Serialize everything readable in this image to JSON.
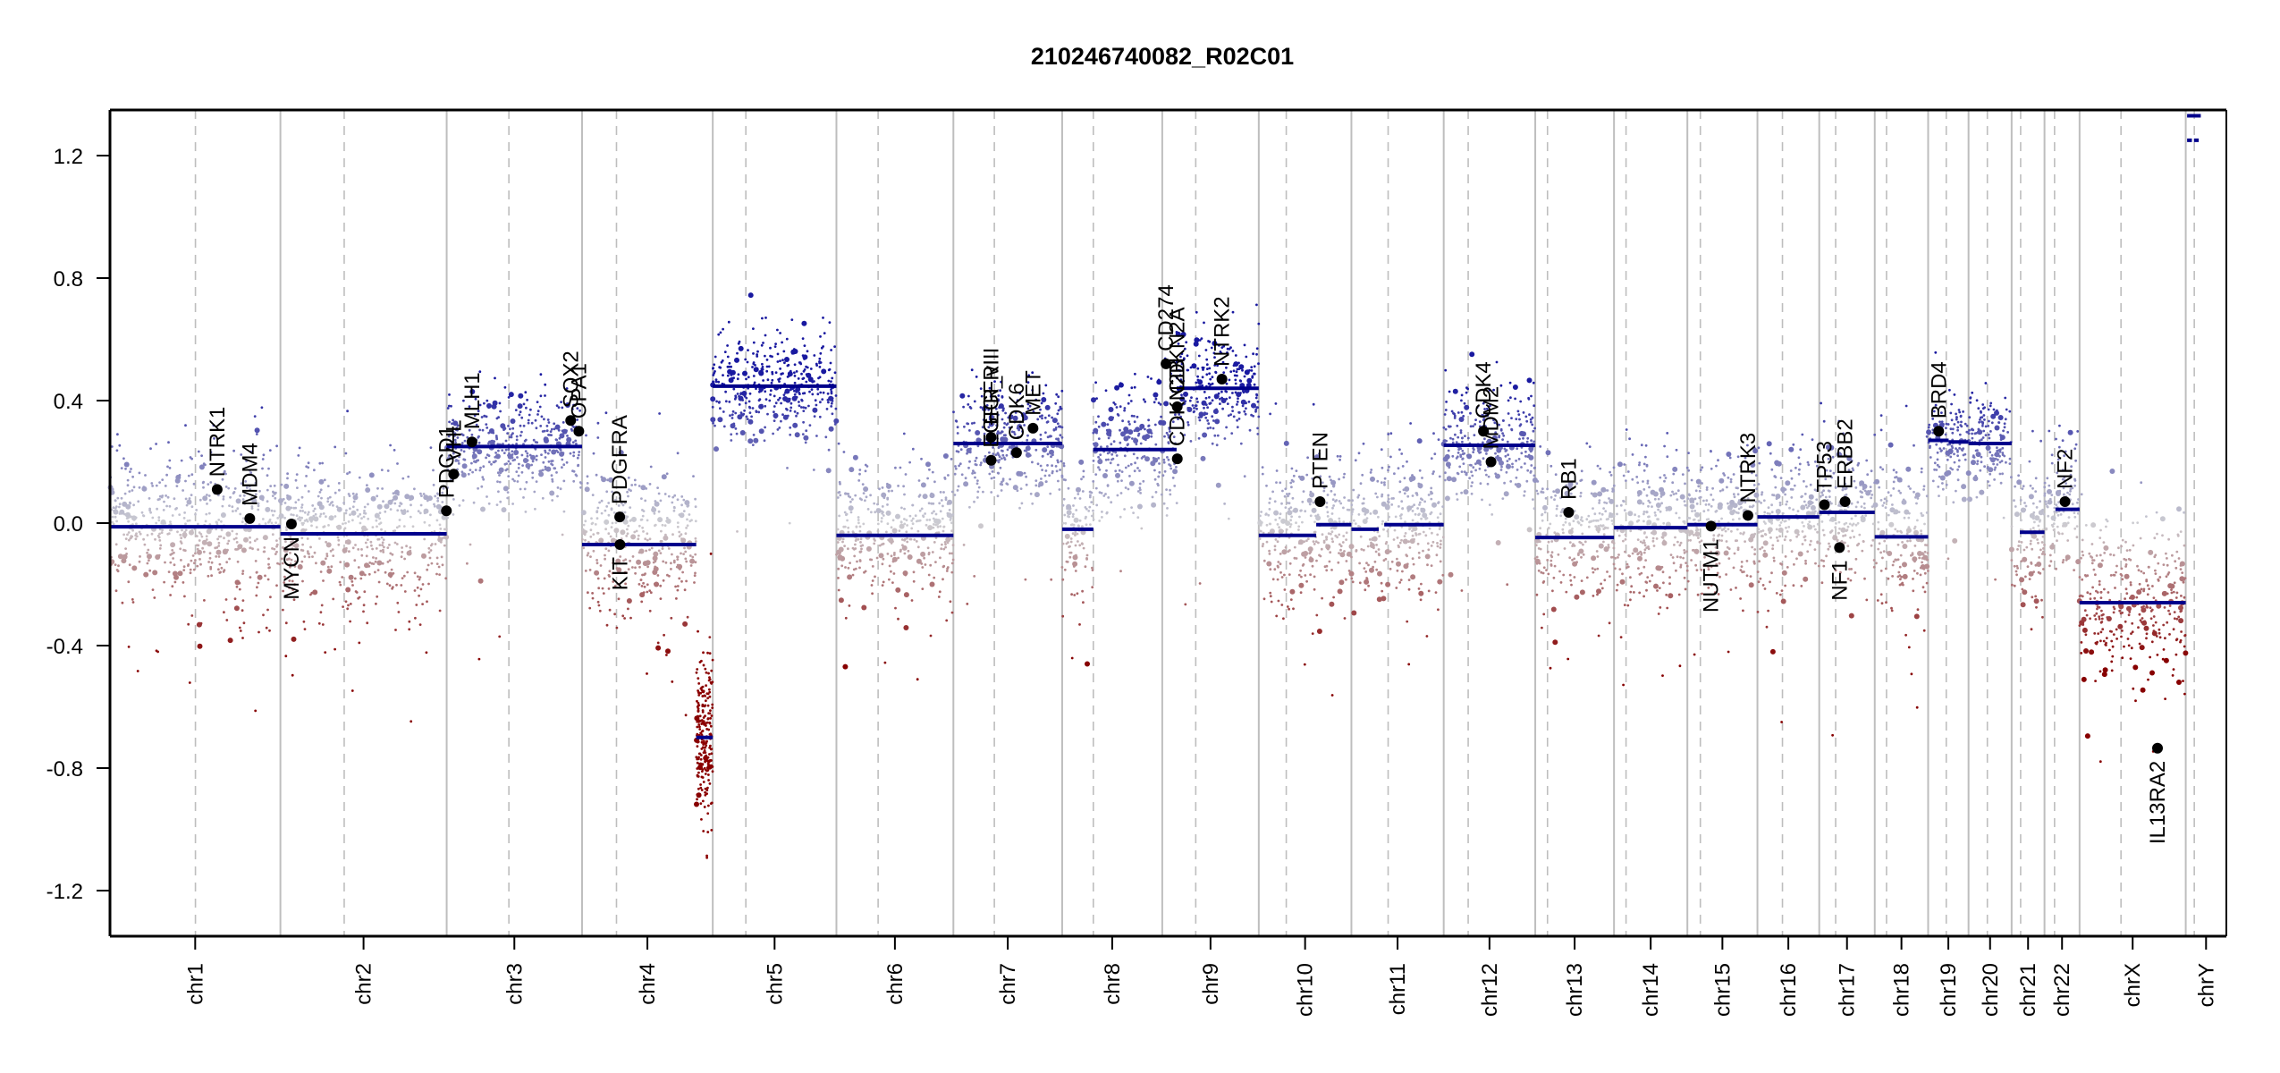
{
  "chart_data": {
    "type": "scatter",
    "title": "210246740082_R02C01",
    "xlabel": "",
    "ylabel": "",
    "ylim": [
      -1.35,
      1.35
    ],
    "yticks": [
      -1.2,
      -0.8,
      -0.4,
      0.0,
      0.4,
      0.8,
      1.2
    ],
    "ytick_labels": [
      "-1.2",
      "-0.8",
      "-0.4",
      "0.0",
      "0.4",
      "0.8",
      "1.2"
    ],
    "grid": false,
    "legend": "none",
    "colors": {
      "segment": "#00008b",
      "gain_probe": "#1f1f9e",
      "neutral_probe": "#c8c8d0",
      "loss_probe": "#8b0000",
      "chrom_boundary": "#bebebe",
      "centromere": "#bebebe",
      "gene_point": "#000000"
    },
    "chromosomes": [
      {
        "name": "chr1",
        "length": 249.3,
        "centromere": 125.0
      },
      {
        "name": "chr2",
        "length": 243.2,
        "centromere": 93.3
      },
      {
        "name": "chr3",
        "length": 198.0,
        "centromere": 91.0
      },
      {
        "name": "chr4",
        "length": 191.2,
        "centromere": 50.4
      },
      {
        "name": "chr5",
        "length": 180.9,
        "centromere": 48.4
      },
      {
        "name": "chr6",
        "length": 171.1,
        "centromere": 61.0
      },
      {
        "name": "chr7",
        "length": 159.1,
        "centromere": 59.9
      },
      {
        "name": "chr8",
        "length": 146.4,
        "centromere": 45.6
      },
      {
        "name": "chr9",
        "length": 141.2,
        "centromere": 49.0
      },
      {
        "name": "chr10",
        "length": 135.5,
        "centromere": 40.2
      },
      {
        "name": "chr11",
        "length": 135.0,
        "centromere": 53.7
      },
      {
        "name": "chr12",
        "length": 133.9,
        "centromere": 35.8
      },
      {
        "name": "chr13",
        "length": 115.2,
        "centromere": 17.9
      },
      {
        "name": "chr14",
        "length": 107.3,
        "centromere": 17.6
      },
      {
        "name": "chr15",
        "length": 102.5,
        "centromere": 19.0
      },
      {
        "name": "chr16",
        "length": 90.4,
        "centromere": 36.6
      },
      {
        "name": "chr17",
        "length": 81.2,
        "centromere": 24.0
      },
      {
        "name": "chr18",
        "length": 78.1,
        "centromere": 17.2
      },
      {
        "name": "chr19",
        "length": 59.1,
        "centromere": 26.5
      },
      {
        "name": "chr20",
        "length": 63.0,
        "centromere": 27.5
      },
      {
        "name": "chr21",
        "length": 48.1,
        "centromere": 13.2
      },
      {
        "name": "chr22",
        "length": 51.3,
        "centromere": 14.7
      },
      {
        "name": "chrX",
        "length": 155.3,
        "centromere": 60.6
      },
      {
        "name": "chrY",
        "length": 59.4,
        "centromere": 12.5
      }
    ],
    "segments": [
      {
        "chr": "chr1",
        "start": 0,
        "end": 249.3,
        "value": -0.012
      },
      {
        "chr": "chr2",
        "start": 0,
        "end": 243.2,
        "value": -0.035
      },
      {
        "chr": "chr3",
        "start": 0,
        "end": 198.0,
        "value": 0.25
      },
      {
        "chr": "chr4",
        "start": 0,
        "end": 167.0,
        "value": -0.07
      },
      {
        "chr": "chr4",
        "start": 167.0,
        "end": 191.2,
        "value": -0.7
      },
      {
        "chr": "chr5",
        "start": 0,
        "end": 180.9,
        "value": 0.447
      },
      {
        "chr": "chr6",
        "start": 0,
        "end": 171.1,
        "value": -0.04
      },
      {
        "chr": "chr7",
        "start": 0,
        "end": 159.1,
        "value": 0.26
      },
      {
        "chr": "chr8",
        "start": 0,
        "end": 45.6,
        "value": -0.02
      },
      {
        "chr": "chr8",
        "start": 45.6,
        "end": 146.4,
        "value": 0.24
      },
      {
        "chr": "chr9",
        "start": 0,
        "end": 21.0,
        "value": 0.24
      },
      {
        "chr": "chr9",
        "start": 21.0,
        "end": 141.2,
        "value": 0.44
      },
      {
        "chr": "chr10",
        "start": 0,
        "end": 84.0,
        "value": -0.04
      },
      {
        "chr": "chr10",
        "start": 84.0,
        "end": 135.5,
        "value": -0.005
      },
      {
        "chr": "chr11",
        "start": 0,
        "end": 40.0,
        "value": -0.02
      },
      {
        "chr": "chr11",
        "start": 48.0,
        "end": 135.0,
        "value": -0.005
      },
      {
        "chr": "chr12",
        "start": 0,
        "end": 133.9,
        "value": 0.254
      },
      {
        "chr": "chr13",
        "start": 0,
        "end": 115.2,
        "value": -0.047
      },
      {
        "chr": "chr14",
        "start": 0,
        "end": 107.3,
        "value": -0.015
      },
      {
        "chr": "chr15",
        "start": 0,
        "end": 102.5,
        "value": -0.005
      },
      {
        "chr": "chr16",
        "start": 0,
        "end": 90.4,
        "value": 0.02
      },
      {
        "chr": "chr17",
        "start": 0,
        "end": 81.2,
        "value": 0.035
      },
      {
        "chr": "chr18",
        "start": 0,
        "end": 78.1,
        "value": -0.045
      },
      {
        "chr": "chr19",
        "start": 0,
        "end": 30.0,
        "value": 0.27
      },
      {
        "chr": "chr19",
        "start": 30.0,
        "end": 59.1,
        "value": 0.265
      },
      {
        "chr": "chr20",
        "start": 0,
        "end": 63.0,
        "value": 0.26
      },
      {
        "chr": "chr21",
        "start": 12.0,
        "end": 48.1,
        "value": -0.03
      },
      {
        "chr": "chr22",
        "start": 16.0,
        "end": 51.3,
        "value": 0.045
      },
      {
        "chr": "chrX",
        "start": 0,
        "end": 155.3,
        "value": -0.26
      },
      {
        "chr": "chrY",
        "start": 2.0,
        "end": 22.0,
        "value": 1.33
      },
      {
        "chr": "chrY",
        "start": 2.0,
        "end": 9.0,
        "value": 1.25
      },
      {
        "chr": "chrY",
        "start": 12.0,
        "end": 19.0,
        "value": 1.25
      }
    ],
    "genes": [
      {
        "name": "NTRK1",
        "chr": "chr1",
        "pos": 156.8,
        "value": 0.11,
        "label_side": "above"
      },
      {
        "name": "MDM4",
        "chr": "chr1",
        "pos": 204.5,
        "value": 0.015,
        "label_side": "above"
      },
      {
        "name": "MYCN",
        "chr": "chr2",
        "pos": 16.1,
        "value": -0.003,
        "label_side": "below"
      },
      {
        "name": "PDCD1",
        "chr": "chr2",
        "pos": 242.8,
        "value": 0.04,
        "label_side": "above"
      },
      {
        "name": "VHL",
        "chr": "chr3",
        "pos": 10.2,
        "value": 0.16,
        "label_side": "above"
      },
      {
        "name": "MLH1",
        "chr": "chr3",
        "pos": 37.0,
        "value": 0.265,
        "label_side": "above"
      },
      {
        "name": "SOX2",
        "chr": "chr3",
        "pos": 181.4,
        "value": 0.335,
        "label_side": "above"
      },
      {
        "name": "OPA1",
        "chr": "chr3",
        "pos": 193.3,
        "value": 0.3,
        "label_side": "above"
      },
      {
        "name": "PDGFRA",
        "chr": "chr4",
        "pos": 55.1,
        "value": 0.02,
        "label_side": "above"
      },
      {
        "name": "KIT",
        "chr": "chr4",
        "pos": 55.5,
        "value": -0.07,
        "label_side": "below"
      },
      {
        "name": "EGFR",
        "chr": "chr7",
        "pos": 55.1,
        "value": 0.28,
        "label_side": "above"
      },
      {
        "name": "EGFR_vIII",
        "chr": "chr7",
        "pos": 55.2,
        "value": 0.205,
        "label_side": "above"
      },
      {
        "name": "CDK6",
        "chr": "chr7",
        "pos": 92.3,
        "value": 0.23,
        "label_side": "above"
      },
      {
        "name": "MET",
        "chr": "chr7",
        "pos": 116.4,
        "value": 0.31,
        "label_side": "above"
      },
      {
        "name": "CD274",
        "chr": "chr9",
        "pos": 5.5,
        "value": 0.52,
        "label_side": "above"
      },
      {
        "name": "CDKN2A",
        "chr": "chr9",
        "pos": 21.9,
        "value": 0.38,
        "label_side": "above"
      },
      {
        "name": "CDKN2B",
        "chr": "chr9",
        "pos": 22.0,
        "value": 0.21,
        "label_side": "above"
      },
      {
        "name": "NTRK2",
        "chr": "chr9",
        "pos": 87.3,
        "value": 0.47,
        "label_side": "above"
      },
      {
        "name": "PTEN",
        "chr": "chr10",
        "pos": 89.6,
        "value": 0.07,
        "label_side": "above"
      },
      {
        "name": "CDK4",
        "chr": "chr12",
        "pos": 58.1,
        "value": 0.3,
        "label_side": "above"
      },
      {
        "name": "MDM2",
        "chr": "chr12",
        "pos": 69.2,
        "value": 0.2,
        "label_side": "above"
      },
      {
        "name": "RB1",
        "chr": "chr13",
        "pos": 48.9,
        "value": 0.035,
        "label_side": "above"
      },
      {
        "name": "NUTM1",
        "chr": "chr15",
        "pos": 34.6,
        "value": -0.01,
        "label_side": "below"
      },
      {
        "name": "NTRK3",
        "chr": "chr15",
        "pos": 88.6,
        "value": 0.025,
        "label_side": "above"
      },
      {
        "name": "TP53",
        "chr": "chr17",
        "pos": 7.6,
        "value": 0.06,
        "label_side": "above"
      },
      {
        "name": "NF1",
        "chr": "chr17",
        "pos": 29.6,
        "value": -0.08,
        "label_side": "below"
      },
      {
        "name": "ERBB2",
        "chr": "chr17",
        "pos": 37.8,
        "value": 0.07,
        "label_side": "above"
      },
      {
        "name": "BRD4",
        "chr": "chr19",
        "pos": 15.4,
        "value": 0.3,
        "label_side": "above"
      },
      {
        "name": "NF2",
        "chr": "chr22",
        "pos": 30.0,
        "value": 0.07,
        "label_side": "above"
      },
      {
        "name": "IL13RA2",
        "chr": "chrX",
        "pos": 114.0,
        "value": -0.735,
        "label_side": "below"
      }
    ],
    "probe_profile": [
      {
        "chr": "chr1",
        "base": 0.0,
        "spread": 0.13
      },
      {
        "chr": "chr2",
        "base": -0.03,
        "spread": 0.12
      },
      {
        "chr": "chr3",
        "base": 0.25,
        "spread": 0.09
      },
      {
        "chr": "chr4",
        "base": -0.07,
        "spread": 0.12
      },
      {
        "chr": "chr5",
        "base": 0.45,
        "spread": 0.09
      },
      {
        "chr": "chr6",
        "base": -0.04,
        "spread": 0.11
      },
      {
        "chr": "chr7",
        "base": 0.26,
        "spread": 0.09
      },
      {
        "chr": "chr8",
        "base": 0.22,
        "spread": 0.11
      },
      {
        "chr": "chr9",
        "base": 0.4,
        "spread": 0.1
      },
      {
        "chr": "chr10",
        "base": -0.02,
        "spread": 0.12
      },
      {
        "chr": "chr11",
        "base": -0.01,
        "spread": 0.12
      },
      {
        "chr": "chr12",
        "base": 0.25,
        "spread": 0.09
      },
      {
        "chr": "chr13",
        "base": -0.05,
        "spread": 0.12
      },
      {
        "chr": "chr14",
        "base": -0.02,
        "spread": 0.12
      },
      {
        "chr": "chr15",
        "base": 0.0,
        "spread": 0.12
      },
      {
        "chr": "chr16",
        "base": 0.02,
        "spread": 0.12
      },
      {
        "chr": "chr17",
        "base": 0.035,
        "spread": 0.12
      },
      {
        "chr": "chr18",
        "base": -0.045,
        "spread": 0.12
      },
      {
        "chr": "chr19",
        "base": 0.27,
        "spread": 0.08
      },
      {
        "chr": "chr20",
        "base": 0.26,
        "spread": 0.08
      },
      {
        "chr": "chr21",
        "base": -0.03,
        "spread": 0.12
      },
      {
        "chr": "chr22",
        "base": 0.045,
        "spread": 0.11
      },
      {
        "chr": "chrX",
        "base": -0.26,
        "spread": 0.13
      },
      {
        "chr": "chrY",
        "base": 1.2,
        "spread": 0.0
      }
    ]
  }
}
